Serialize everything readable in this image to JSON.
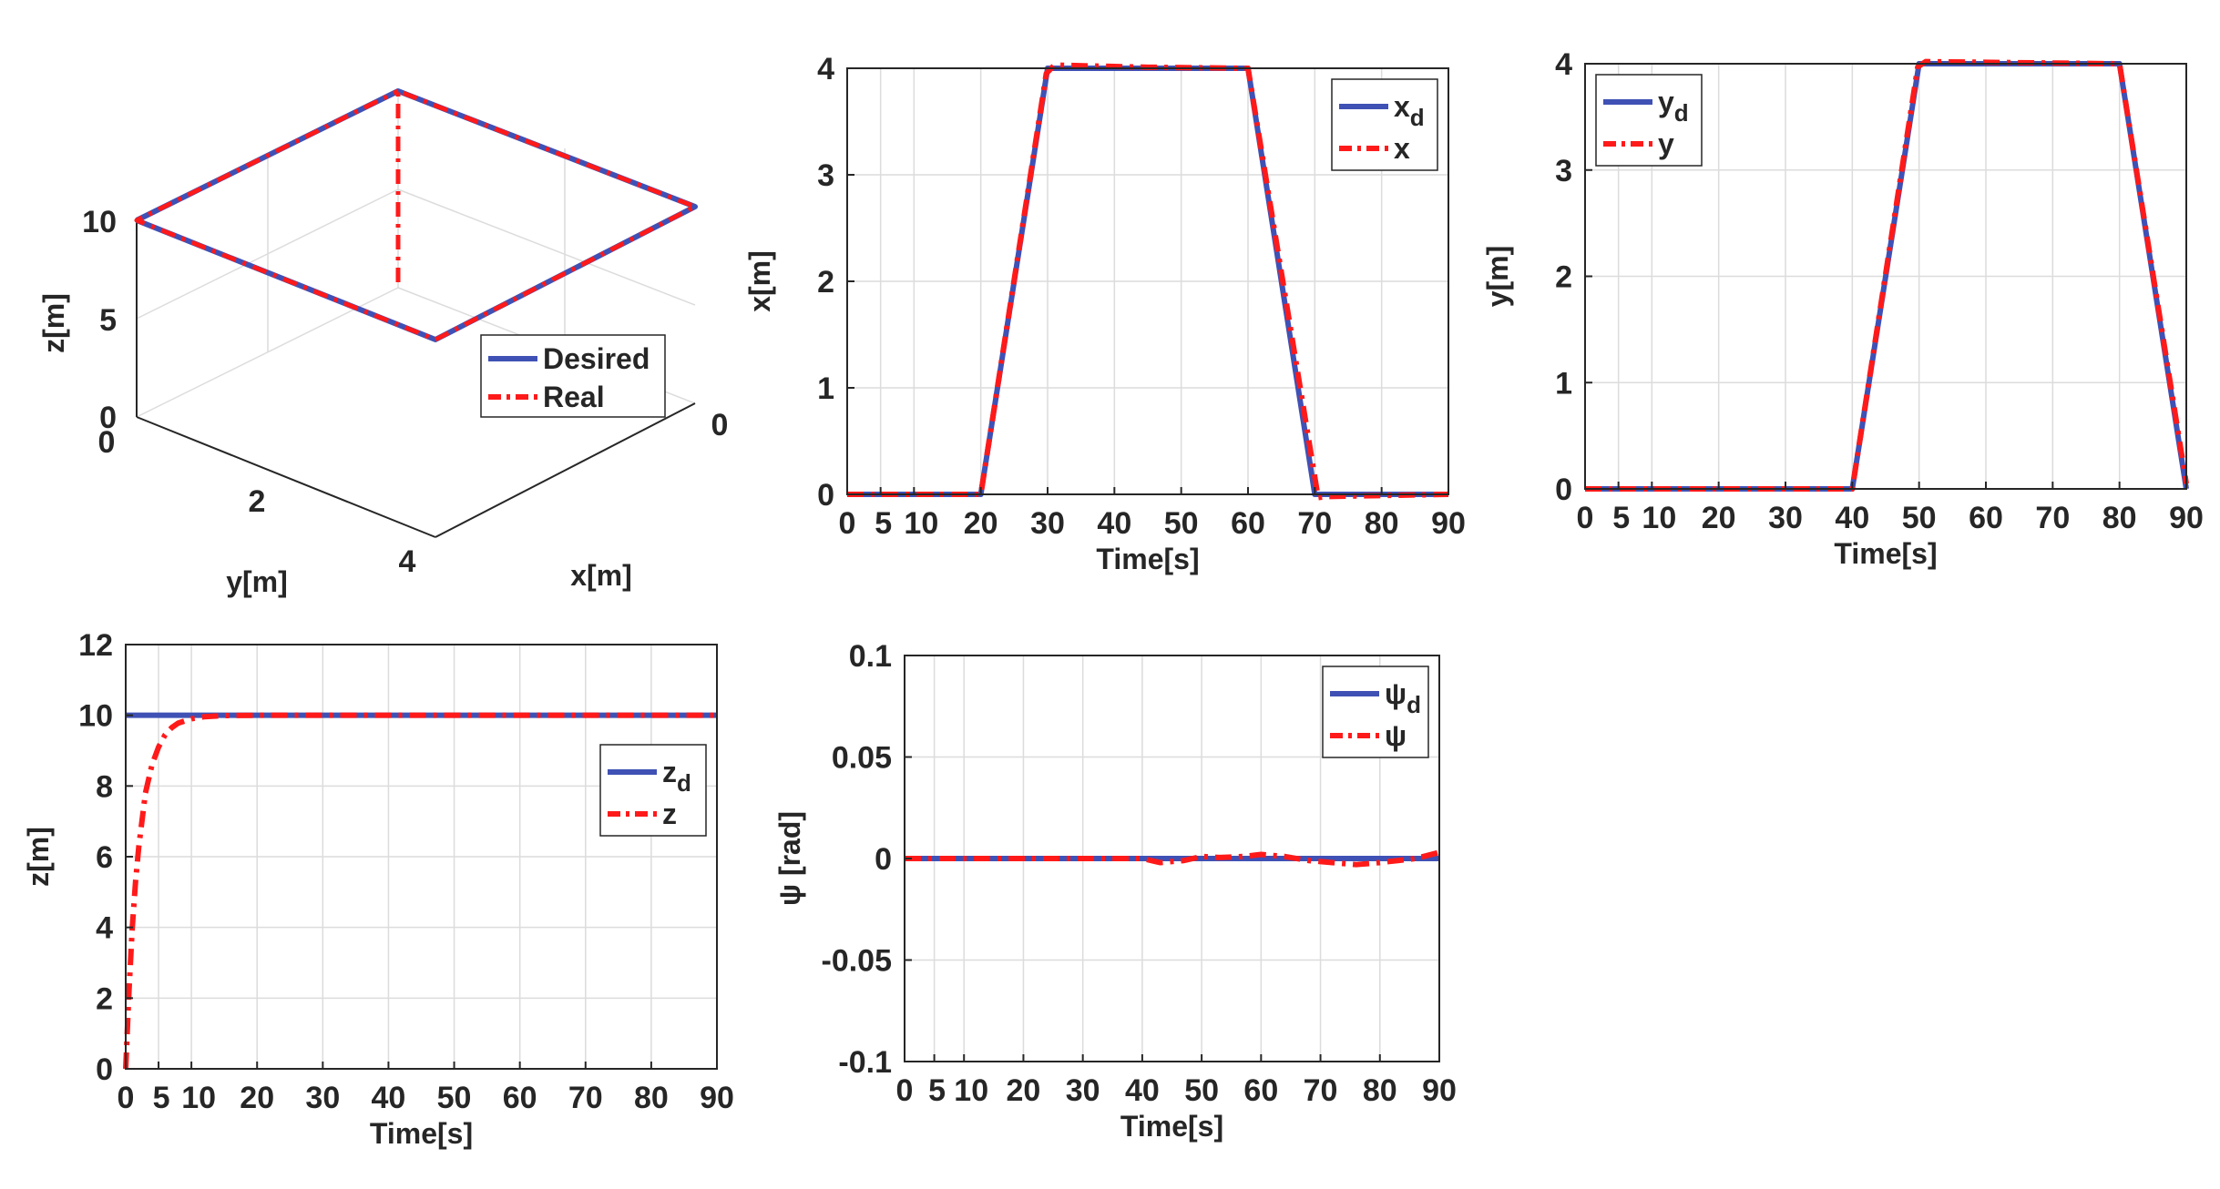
{
  "colors": {
    "desired": "#3f51b5",
    "real": "#ff1a1a",
    "axis": "#262626",
    "grid": "#dcdcdc"
  },
  "chart_data": [
    {
      "type": "line3d",
      "title": "",
      "xlabel": "x[m]",
      "ylabel": "y[m]",
      "zlabel": "z[m]",
      "x_ticks": [
        "0"
      ],
      "y_ticks": [
        "0",
        "2",
        "4"
      ],
      "z_ticks": [
        "0",
        "5",
        "10"
      ],
      "legend": [
        "Desired",
        "Real"
      ],
      "series": [
        {
          "name": "Desired",
          "points": [
            [
              0,
              0,
              10
            ],
            [
              4,
              0,
              10
            ],
            [
              4,
              4,
              10
            ],
            [
              0,
              4,
              10
            ],
            [
              0,
              0,
              10
            ]
          ]
        },
        {
          "name": "Real",
          "points": [
            [
              0,
              0,
              0
            ],
            [
              0,
              0,
              10
            ],
            [
              4,
              0,
              10
            ],
            [
              4,
              4,
              10
            ],
            [
              0,
              4,
              10
            ],
            [
              0,
              0,
              10
            ]
          ]
        }
      ]
    },
    {
      "type": "line",
      "xlabel": "Time[s]",
      "ylabel": "x[m]",
      "xlim": [
        0,
        90
      ],
      "ylim": [
        0,
        4
      ],
      "x_ticks": [
        0,
        5,
        10,
        20,
        30,
        40,
        50,
        60,
        70,
        80,
        90
      ],
      "x_tick_labels": [
        "0",
        "5",
        "10",
        "20",
        "30",
        "40",
        "50",
        "60",
        "70",
        "80",
        "90"
      ],
      "y_ticks": [
        0,
        1,
        2,
        3,
        4
      ],
      "legend": [
        {
          "main": "x",
          "sub": "d"
        },
        {
          "main": "x",
          "sub": ""
        }
      ],
      "series": [
        {
          "name": "x_d",
          "x": [
            0,
            20,
            30,
            60,
            70,
            90
          ],
          "y": [
            0,
            0,
            4,
            4,
            0,
            0
          ]
        },
        {
          "name": "x",
          "x": [
            0,
            20,
            29.8,
            31,
            45,
            60,
            70.5,
            72,
            90
          ],
          "y": [
            0,
            0,
            3.95,
            4.03,
            4.01,
            4,
            -0.03,
            -0.02,
            0
          ]
        }
      ]
    },
    {
      "type": "line",
      "xlabel": "Time[s]",
      "ylabel": "y[m]",
      "xlim": [
        0,
        90
      ],
      "ylim": [
        0,
        4
      ],
      "x_ticks": [
        0,
        5,
        10,
        20,
        30,
        40,
        50,
        60,
        70,
        80,
        90
      ],
      "x_tick_labels": [
        "0",
        "5",
        "10",
        "20",
        "30",
        "40",
        "50",
        "60",
        "70",
        "80",
        "90"
      ],
      "y_ticks": [
        0,
        1,
        2,
        3,
        4
      ],
      "legend": [
        {
          "main": "y",
          "sub": "d"
        },
        {
          "main": "y",
          "sub": ""
        }
      ],
      "series": [
        {
          "name": "y_d",
          "x": [
            0,
            40,
            50,
            80,
            90
          ],
          "y": [
            0,
            0,
            4,
            4,
            0
          ]
        },
        {
          "name": "y",
          "x": [
            0,
            40,
            49.8,
            51,
            65,
            80,
            90
          ],
          "y": [
            0,
            0,
            3.97,
            4.02,
            4.01,
            4,
            0.05
          ]
        }
      ]
    },
    {
      "type": "line",
      "xlabel": "Time[s]",
      "ylabel": "z[m]",
      "xlim": [
        0,
        90
      ],
      "ylim": [
        0,
        12
      ],
      "x_ticks": [
        0,
        5,
        10,
        20,
        30,
        40,
        50,
        60,
        70,
        80,
        90
      ],
      "x_tick_labels": [
        "0",
        "5",
        "10",
        "20",
        "30",
        "40",
        "50",
        "60",
        "70",
        "80",
        "90"
      ],
      "y_ticks": [
        0,
        2,
        4,
        6,
        8,
        10,
        12
      ],
      "legend": [
        {
          "main": "z",
          "sub": "d"
        },
        {
          "main": "z",
          "sub": ""
        }
      ],
      "series": [
        {
          "name": "z_d",
          "x": [
            0,
            90
          ],
          "y": [
            10,
            10
          ]
        },
        {
          "name": "z",
          "x": [
            0,
            0.5,
            1,
            1.5,
            2,
            3,
            4,
            5,
            6,
            7,
            8,
            10,
            12,
            15,
            20,
            90
          ],
          "y": [
            0,
            2.2,
            4.0,
            5.3,
            6.3,
            7.8,
            8.6,
            9.1,
            9.45,
            9.65,
            9.78,
            9.9,
            9.96,
            9.99,
            10,
            10
          ]
        }
      ]
    },
    {
      "type": "line",
      "xlabel": "Time[s]",
      "ylabel": "ψ [rad]",
      "xlim": [
        0,
        90
      ],
      "ylim": [
        -0.1,
        0.1
      ],
      "x_ticks": [
        0,
        5,
        10,
        20,
        30,
        40,
        50,
        60,
        70,
        80,
        90
      ],
      "x_tick_labels": [
        "0",
        "5",
        "10",
        "20",
        "30",
        "40",
        "50",
        "60",
        "70",
        "80",
        "90"
      ],
      "y_ticks": [
        -0.1,
        -0.05,
        0,
        0.05,
        0.1
      ],
      "y_tick_labels": [
        "-0.1",
        "-0.05",
        "0",
        "0.05",
        "0.1"
      ],
      "legend": [
        {
          "main": "ψ",
          "sub": "d"
        },
        {
          "main": "ψ",
          "sub": ""
        }
      ],
      "series": [
        {
          "name": "psi_d",
          "x": [
            0,
            90
          ],
          "y": [
            0,
            0
          ]
        },
        {
          "name": "psi",
          "x": [
            0,
            40,
            43,
            47,
            50,
            53,
            57,
            60,
            64,
            68,
            72,
            76,
            80,
            83,
            86,
            90
          ],
          "y": [
            0,
            0,
            -0.002,
            -0.001,
            0.001,
            0.0005,
            0.001,
            0.002,
            0.001,
            -0.001,
            -0.002,
            -0.003,
            -0.002,
            -0.001,
            0,
            0.003
          ]
        }
      ]
    }
  ]
}
